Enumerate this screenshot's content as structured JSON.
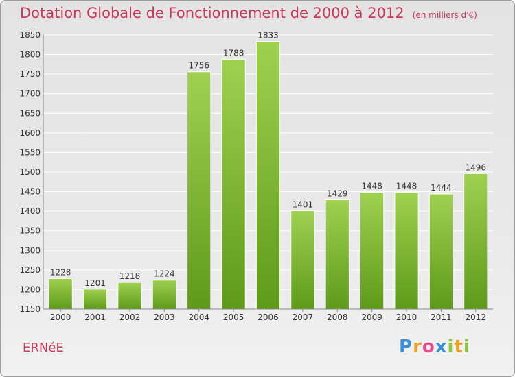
{
  "title": "Dotation Globale de Fonctionnement de 2000 à 2012",
  "subtitle": "(en milliers d'€)",
  "commune": "ERNéE",
  "logo": {
    "letters": [
      "P",
      "r",
      "o",
      "x",
      "i",
      "t",
      "i"
    ],
    "colors": [
      "#3a8fd6",
      "#f0a020",
      "#e94b8a",
      "#3a8fd6",
      "#8cc63f",
      "#f0a020",
      "#8cc63f"
    ]
  },
  "colors": {
    "bar_light": "#9fd14f",
    "bar_dark": "#5e9a1a",
    "title": "#c8385a"
  },
  "chart_data": {
    "type": "bar",
    "title": "Dotation Globale de Fonctionnement de 2000 à 2012",
    "categories": [
      "2000",
      "2001",
      "2002",
      "2003",
      "2004",
      "2005",
      "2006",
      "2007",
      "2008",
      "2009",
      "2010",
      "2011",
      "2012"
    ],
    "values": [
      1228,
      1201,
      1218,
      1224,
      1756,
      1788,
      1833,
      1401,
      1429,
      1448,
      1448,
      1444,
      1496
    ],
    "ylim": [
      1150,
      1850
    ],
    "yticks": [
      1150,
      1200,
      1250,
      1300,
      1350,
      1400,
      1450,
      1500,
      1550,
      1600,
      1650,
      1700,
      1750,
      1800,
      1850
    ],
    "grid": true
  }
}
